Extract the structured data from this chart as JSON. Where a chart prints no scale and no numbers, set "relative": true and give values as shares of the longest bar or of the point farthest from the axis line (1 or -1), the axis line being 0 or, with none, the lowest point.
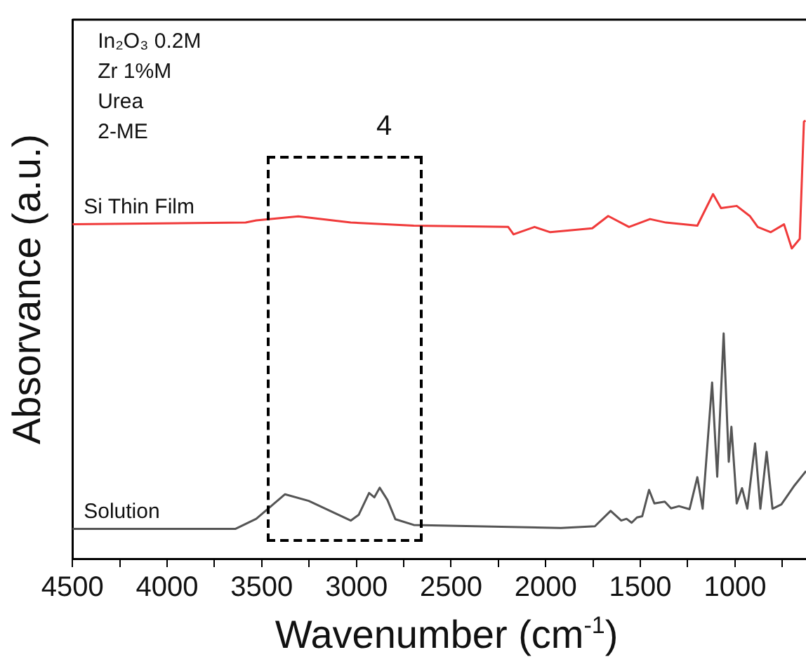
{
  "chart_data": {
    "type": "line",
    "relative": true,
    "xlabel": "Wavenumber (cm$^{-1}$)",
    "ylabel": "Absorvance (a.u.)",
    "xlim": [
      4500,
      625
    ],
    "xticks": [
      4500,
      {
        "value": 4250,
        "label": null
      },
      4000,
      {
        "value": 3750,
        "label": null
      },
      3500,
      {
        "value": 3250,
        "label": null
      },
      3000,
      {
        "value": 2750,
        "label": null
      },
      2500,
      {
        "value": 2250,
        "label": null
      },
      2000,
      {
        "value": 1750,
        "label": null
      },
      1500,
      {
        "value": 1250,
        "label": null
      },
      1000,
      {
        "value": 750,
        "label": null
      }
    ],
    "tick_labels": "x",
    "grid": false,
    "legend": false,
    "marker": "none",
    "line_style": "solid",
    "series": [
      {
        "name": "Si Thin Film",
        "color": "#f03a3a",
        "x": [
          4500,
          3585,
          3529,
          3307,
          3030,
          2697,
          2198,
          2170,
          2059,
          1976,
          1754,
          1670,
          1560,
          1449,
          1365,
          1199,
          1116,
          1074,
          991,
          922,
          880,
          811,
          741,
          700,
          658,
          636,
          628
        ],
        "values": [
          0.763,
          0.767,
          0.772,
          0.781,
          0.767,
          0.76,
          0.757,
          0.74,
          0.757,
          0.745,
          0.754,
          0.782,
          0.757,
          0.775,
          0.767,
          0.76,
          0.832,
          0.8,
          0.805,
          0.782,
          0.757,
          0.745,
          0.763,
          0.708,
          0.73,
          0.997,
          1.0
        ]
      },
      {
        "name": "Solution",
        "color": "#555555",
        "x": [
          4500,
          3640,
          3529,
          3377,
          3252,
          3030,
          2988,
          2933,
          2905,
          2877,
          2836,
          2794,
          2697,
          1920,
          1740,
          1657,
          1601,
          1573,
          1546,
          1518,
          1490,
          1454,
          1426,
          1371,
          1338,
          1296,
          1240,
          1199,
          1171,
          1121,
          1094,
          1060,
          1033,
          1019,
          991,
          963,
          935,
          894,
          866,
          833,
          802,
          755,
          686,
          625
        ],
        "values": [
          0.068,
          0.068,
          0.091,
          0.147,
          0.132,
          0.087,
          0.1,
          0.15,
          0.14,
          0.162,
          0.134,
          0.09,
          0.077,
          0.07,
          0.074,
          0.109,
          0.087,
          0.091,
          0.082,
          0.094,
          0.097,
          0.157,
          0.126,
          0.13,
          0.115,
          0.12,
          0.113,
          0.186,
          0.114,
          0.402,
          0.187,
          0.514,
          0.221,
          0.301,
          0.126,
          0.161,
          0.114,
          0.263,
          0.114,
          0.244,
          0.114,
          0.124,
          0.167,
          0.2
        ]
      }
    ],
    "annotations": [
      "In₂O₃ 0.2M",
      "Zr 1%M",
      "Urea",
      "2-ME",
      "4"
    ]
  }
}
